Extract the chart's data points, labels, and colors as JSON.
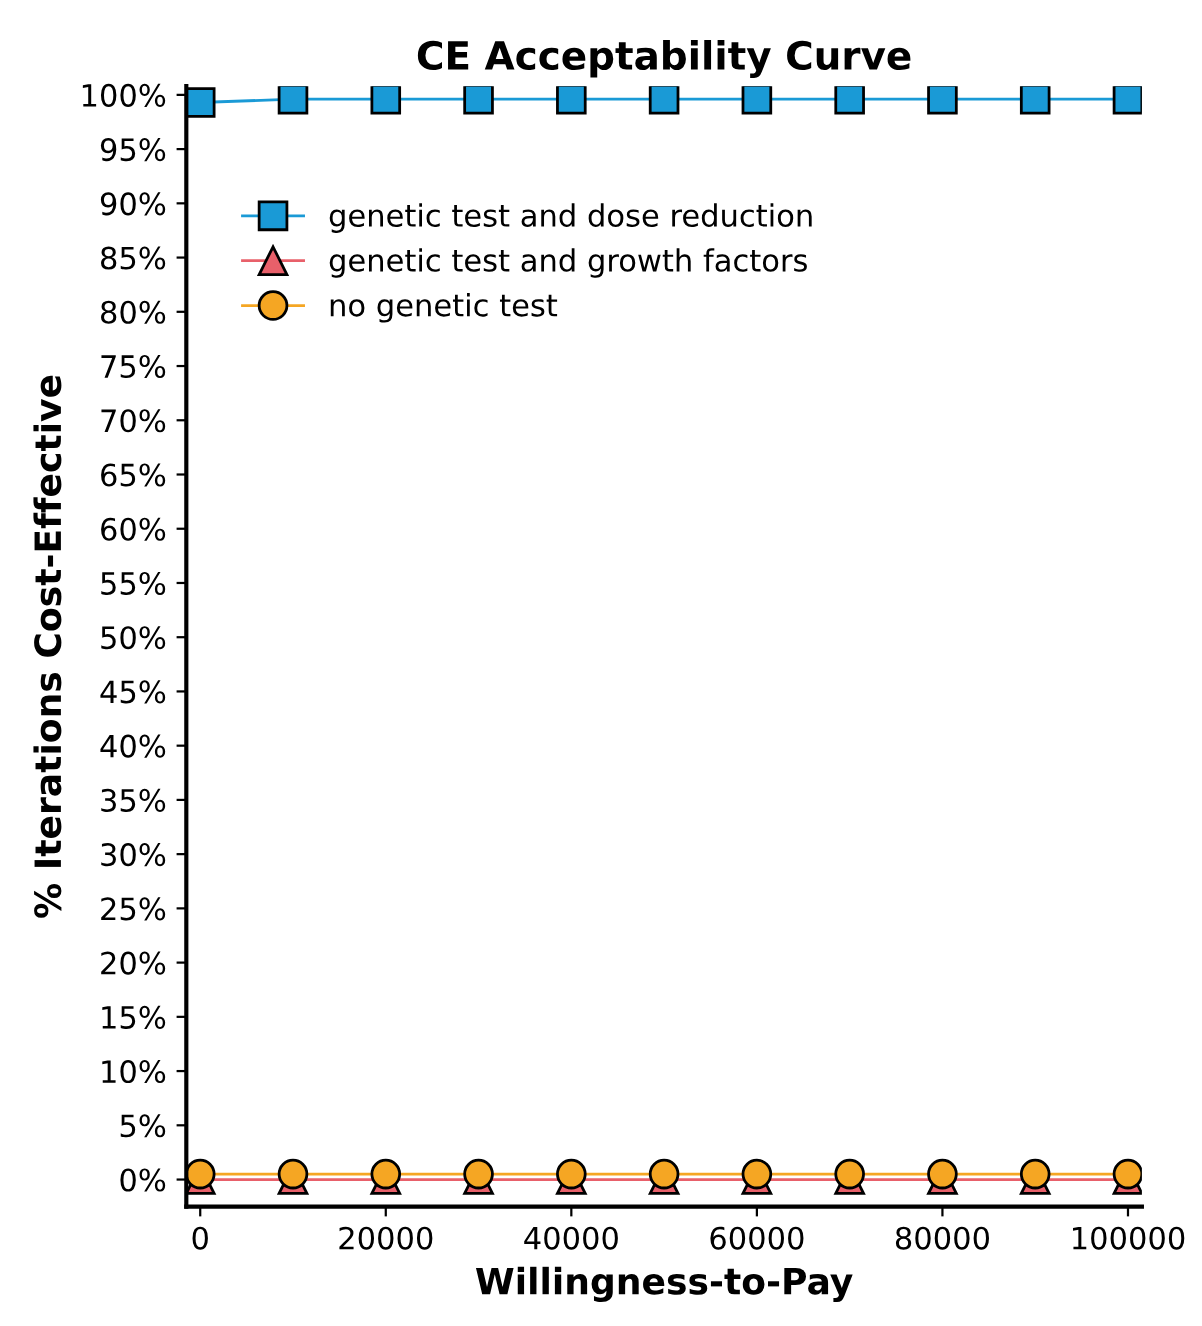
{
  "chart_data": {
    "type": "line",
    "title": "CE Acceptability Curve",
    "xlabel": "Willingness-to-Pay",
    "ylabel": "% Iterations Cost-Effective",
    "x": [
      0,
      10000,
      20000,
      30000,
      40000,
      50000,
      60000,
      70000,
      80000,
      90000,
      100000
    ],
    "series": [
      {
        "name": "genetic test and dose reduction",
        "color": "#1a9ad6",
        "marker": "square",
        "values": [
          99.3,
          99.6,
          99.6,
          99.6,
          99.6,
          99.6,
          99.6,
          99.6,
          99.6,
          99.6,
          99.6
        ]
      },
      {
        "name": "genetic test and growth factors",
        "color": "#e8606a",
        "marker": "triangle",
        "values": [
          0,
          0,
          0,
          0,
          0,
          0,
          0,
          0,
          0,
          0,
          0
        ]
      },
      {
        "name": "no genetic test",
        "color": "#f5a623",
        "marker": "circle",
        "values": [
          0.5,
          0.5,
          0.5,
          0.5,
          0.5,
          0.5,
          0.5,
          0.5,
          0.5,
          0.5,
          0.5
        ]
      }
    ],
    "xlim": [
      -1500,
      101500
    ],
    "xticks": [
      0,
      20000,
      40000,
      60000,
      80000,
      100000
    ],
    "ylim": [
      -2.5,
      100.8
    ],
    "yticks": [
      {
        "value": 0,
        "label": "0%"
      },
      {
        "value": 5,
        "label": "5%"
      },
      {
        "value": 10,
        "label": "10%"
      },
      {
        "value": 15,
        "label": "15%"
      },
      {
        "value": 20,
        "label": "20%"
      },
      {
        "value": 25,
        "label": "25%"
      },
      {
        "value": 30,
        "label": "30%"
      },
      {
        "value": 35,
        "label": "35%"
      },
      {
        "value": 40,
        "label": "40%"
      },
      {
        "value": 45,
        "label": "45%"
      },
      {
        "value": 50,
        "label": "50%"
      },
      {
        "value": 55,
        "label": "55%"
      },
      {
        "value": 60,
        "label": "60%"
      },
      {
        "value": 65,
        "label": "65%"
      },
      {
        "value": 70,
        "label": "70%"
      },
      {
        "value": 75,
        "label": "75%"
      },
      {
        "value": 80,
        "label": "80%"
      },
      {
        "value": 85,
        "label": "85%"
      },
      {
        "value": 90,
        "label": "90%"
      },
      {
        "value": 95,
        "label": "95%"
      },
      {
        "value": 100,
        "label": "100%"
      }
    ],
    "grid": false,
    "legend": "top left"
  }
}
